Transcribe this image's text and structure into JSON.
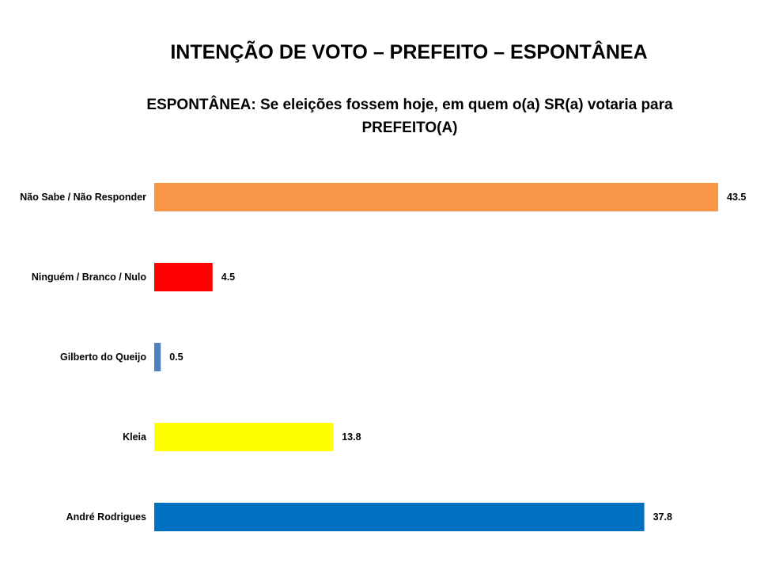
{
  "chart_data": {
    "type": "bar",
    "orientation": "horizontal",
    "title": "INTENÇÃO DE VOTO – PREFEITO – ESPONTÂNEA",
    "subtitle": "ESPONTÂNEA: Se eleições fossem hoje, em quem o(a) SR(a) votaria para PREFEITO(A)",
    "categories": [
      "Não Sabe / Não Responder",
      "Ninguém / Branco / Nulo",
      "Gilberto do Queijo",
      "Kleia",
      "André Rodrigues"
    ],
    "values": [
      43.5,
      4.5,
      0.5,
      13.8,
      37.8
    ],
    "value_labels": [
      "43.5",
      "4.5",
      "0.5",
      "13.8",
      "37.8"
    ],
    "colors": [
      "#F79646",
      "#FF0000",
      "#4F81BD",
      "#FFFF00",
      "#0070C0"
    ],
    "xlim": [
      0,
      43.5
    ],
    "grid": false,
    "legend": "none"
  }
}
